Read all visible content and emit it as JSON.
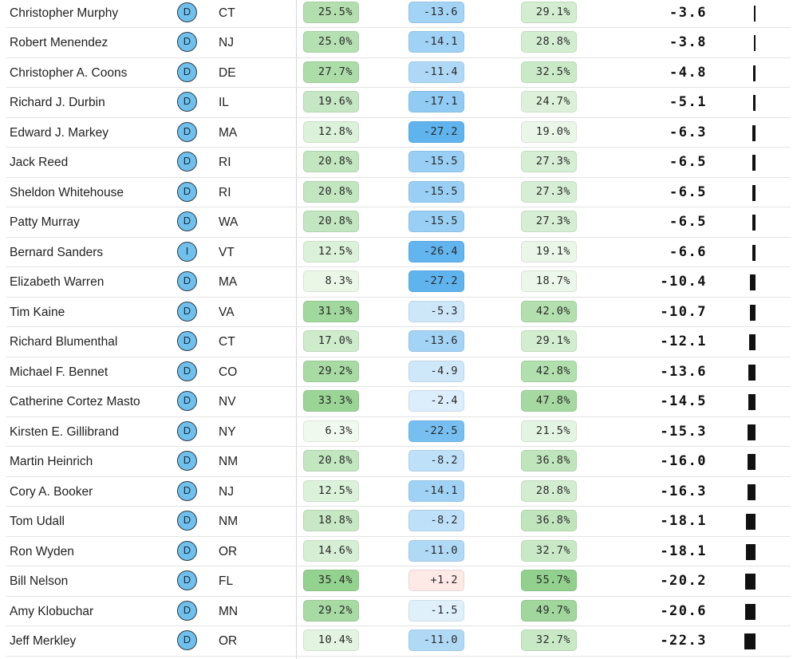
{
  "rows": [
    {
      "name": "Christopher Murphy",
      "party": "D",
      "state": "CT",
      "col1": "25.5%",
      "col2": "-13.6",
      "col3": "29.1%",
      "score": "-3.6",
      "score_value": -3.6
    },
    {
      "name": "Robert Menendez",
      "party": "D",
      "state": "NJ",
      "col1": "25.0%",
      "col2": "-14.1",
      "col3": "28.8%",
      "score": "-3.8",
      "score_value": -3.8
    },
    {
      "name": "Christopher A. Coons",
      "party": "D",
      "state": "DE",
      "col1": "27.7%",
      "col2": "-11.4",
      "col3": "32.5%",
      "score": "-4.8",
      "score_value": -4.8
    },
    {
      "name": "Richard J. Durbin",
      "party": "D",
      "state": "IL",
      "col1": "19.6%",
      "col2": "-17.1",
      "col3": "24.7%",
      "score": "-5.1",
      "score_value": -5.1
    },
    {
      "name": "Edward J. Markey",
      "party": "D",
      "state": "MA",
      "col1": "12.8%",
      "col2": "-27.2",
      "col3": "19.0%",
      "score": "-6.3",
      "score_value": -6.3
    },
    {
      "name": "Jack Reed",
      "party": "D",
      "state": "RI",
      "col1": "20.8%",
      "col2": "-15.5",
      "col3": "27.3%",
      "score": "-6.5",
      "score_value": -6.5
    },
    {
      "name": "Sheldon Whitehouse",
      "party": "D",
      "state": "RI",
      "col1": "20.8%",
      "col2": "-15.5",
      "col3": "27.3%",
      "score": "-6.5",
      "score_value": -6.5
    },
    {
      "name": "Patty Murray",
      "party": "D",
      "state": "WA",
      "col1": "20.8%",
      "col2": "-15.5",
      "col3": "27.3%",
      "score": "-6.5",
      "score_value": -6.5
    },
    {
      "name": "Bernard Sanders",
      "party": "I",
      "state": "VT",
      "col1": "12.5%",
      "col2": "-26.4",
      "col3": "19.1%",
      "score": "-6.6",
      "score_value": -6.6
    },
    {
      "name": "Elizabeth Warren",
      "party": "D",
      "state": "MA",
      "col1": "8.3%",
      "col2": "-27.2",
      "col3": "18.7%",
      "score": "-10.4",
      "score_value": -10.4
    },
    {
      "name": "Tim Kaine",
      "party": "D",
      "state": "VA",
      "col1": "31.3%",
      "col2": "-5.3",
      "col3": "42.0%",
      "score": "-10.7",
      "score_value": -10.7
    },
    {
      "name": "Richard Blumenthal",
      "party": "D",
      "state": "CT",
      "col1": "17.0%",
      "col2": "-13.6",
      "col3": "29.1%",
      "score": "-12.1",
      "score_value": -12.1
    },
    {
      "name": "Michael F. Bennet",
      "party": "D",
      "state": "CO",
      "col1": "29.2%",
      "col2": "-4.9",
      "col3": "42.8%",
      "score": "-13.6",
      "score_value": -13.6
    },
    {
      "name": "Catherine Cortez Masto",
      "party": "D",
      "state": "NV",
      "col1": "33.3%",
      "col2": "-2.4",
      "col3": "47.8%",
      "score": "-14.5",
      "score_value": -14.5
    },
    {
      "name": "Kirsten E. Gillibrand",
      "party": "D",
      "state": "NY",
      "col1": "6.3%",
      "col2": "-22.5",
      "col3": "21.5%",
      "score": "-15.3",
      "score_value": -15.3
    },
    {
      "name": "Martin Heinrich",
      "party": "D",
      "state": "NM",
      "col1": "20.8%",
      "col2": "-8.2",
      "col3": "36.8%",
      "score": "-16.0",
      "score_value": -16.0
    },
    {
      "name": "Cory A. Booker",
      "party": "D",
      "state": "NJ",
      "col1": "12.5%",
      "col2": "-14.1",
      "col3": "28.8%",
      "score": "-16.3",
      "score_value": -16.3
    },
    {
      "name": "Tom Udall",
      "party": "D",
      "state": "NM",
      "col1": "18.8%",
      "col2": "-8.2",
      "col3": "36.8%",
      "score": "-18.1",
      "score_value": -18.1
    },
    {
      "name": "Ron Wyden",
      "party": "D",
      "state": "OR",
      "col1": "14.6%",
      "col2": "-11.0",
      "col3": "32.7%",
      "score": "-18.1",
      "score_value": -18.1
    },
    {
      "name": "Bill Nelson",
      "party": "D",
      "state": "FL",
      "col1": "35.4%",
      "col2": "+1.2",
      "col3": "55.7%",
      "score": "-20.2",
      "score_value": -20.2
    },
    {
      "name": "Amy Klobuchar",
      "party": "D",
      "state": "MN",
      "col1": "29.2%",
      "col2": "-1.5",
      "col3": "49.7%",
      "score": "-20.6",
      "score_value": -20.6
    },
    {
      "name": "Jeff Merkley",
      "party": "D",
      "state": "OR",
      "col1": "10.4%",
      "col2": "-11.0",
      "col3": "32.7%",
      "score": "-22.3",
      "score_value": -22.3
    }
  ],
  "colors": {
    "party_democrat": "#6fc0ec",
    "party_independent": "#6fc0ec",
    "green_scale": [
      "#f4fbf2",
      "#8fd08a"
    ],
    "blue_scale": [
      "#e8f3fc",
      "#5fb4ee"
    ],
    "positive_margin": "#fde9e5",
    "bar": "#111111"
  }
}
